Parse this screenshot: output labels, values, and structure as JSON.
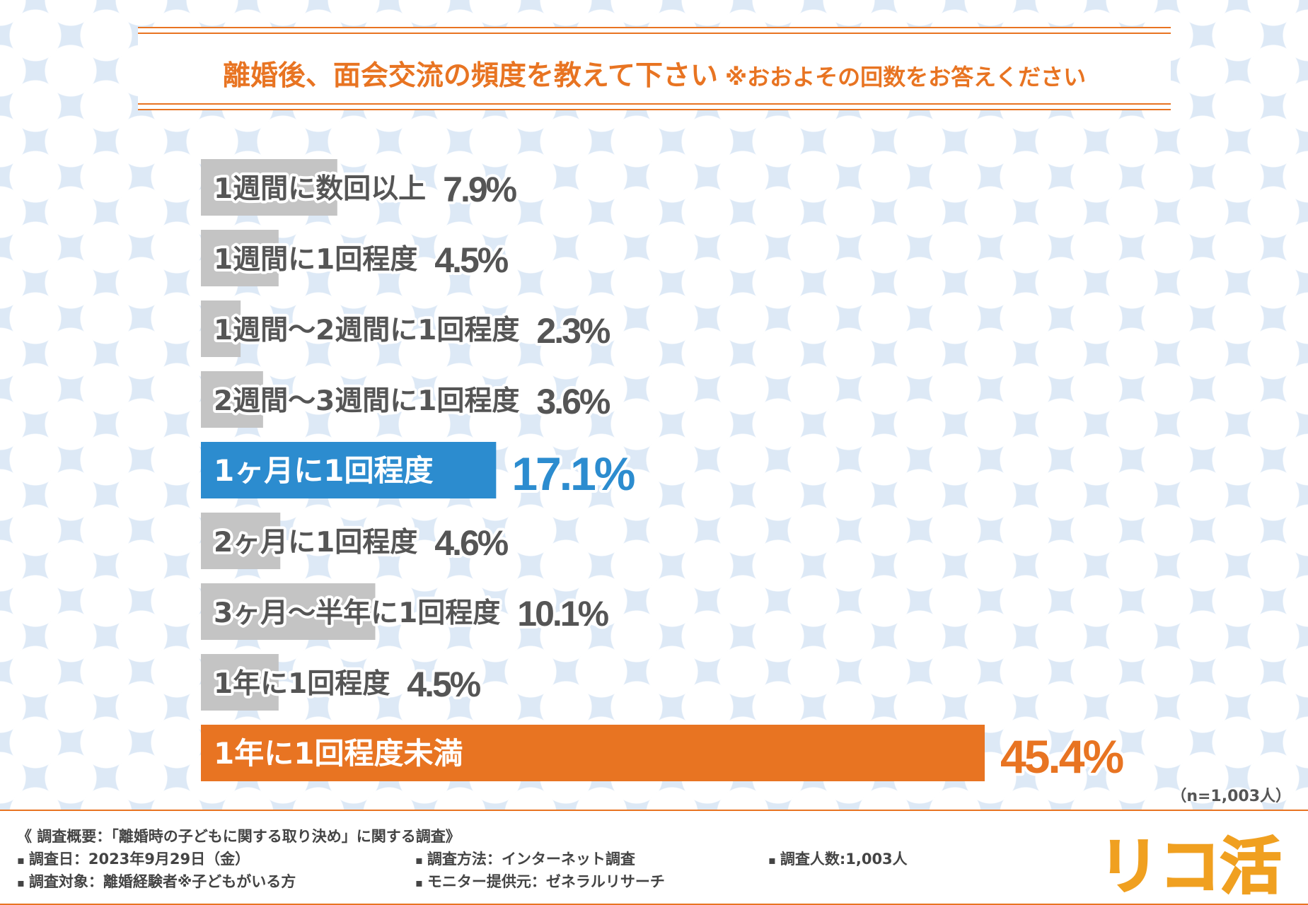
{
  "title": {
    "main": "離婚後、面会交流の頻度を教えて下さい",
    "note": "※おおよその回数をお答えください"
  },
  "colors": {
    "accent": "#e87422",
    "highlight_blue": "#2c8ccf",
    "bar_gray": "#c4c4c4",
    "text_gray": "#555555"
  },
  "chart_data": {
    "type": "bar",
    "orientation": "horizontal",
    "unit": "%",
    "categories": [
      "1週間に数回以上",
      "1週間に1回程度",
      "1週間～2週間に1回程度",
      "2週間～3週間に1回程度",
      "1ヶ月に1回程度",
      "2ヶ月に1回程度",
      "3ヶ月～半年に1回程度",
      "1年に1回程度",
      "1年に1回程度未満"
    ],
    "values": [
      7.9,
      4.5,
      2.3,
      3.6,
      17.1,
      4.6,
      10.1,
      4.5,
      45.4
    ],
    "value_labels": [
      "7.9%",
      "4.5%",
      "2.3%",
      "3.6%",
      "17.1%",
      "4.6%",
      "10.1%",
      "4.5%",
      "45.4%"
    ],
    "highlight": {
      "4": "blue",
      "8": "orange"
    },
    "xlim": [
      0,
      45.4
    ]
  },
  "sample_note": "（n=1,003人）",
  "footer": {
    "summary": "《 調査概要：「離婚時の子どもに関する取り決め」に関する調査》",
    "date": "調査日：2023年9月29日（金）",
    "method": "調査方法：インターネット調査",
    "count": "調査人数:1,003人",
    "target": "調査対象：離婚経験者※子どもがいる方",
    "monitor": "モニター提供元：ゼネラルリサーチ",
    "logo_text": "リコ活"
  }
}
